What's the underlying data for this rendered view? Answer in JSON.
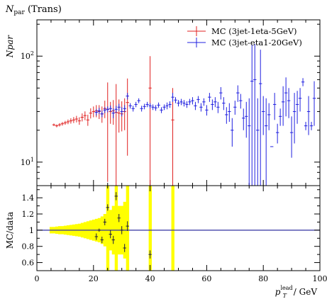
{
  "header": {
    "title_main": "N",
    "title_sub": "par",
    "title_rest": " (Trans)"
  },
  "colors": {
    "mc1": "#e02020",
    "mc2": "#2020e0",
    "band": "#ffff00",
    "ref": "#3030a0"
  },
  "chart_data": [
    {
      "type": "line",
      "panel": "main",
      "title": "Npar (Trans)",
      "ylabel": "Npar",
      "xlim": [
        0,
        100
      ],
      "ylim": [
        6,
        220
      ],
      "yscale": "log",
      "yticks": [
        {
          "v": 10,
          "label": "10^1"
        },
        {
          "v": 100,
          "label": "10^2"
        }
      ],
      "legend_position": "top-right",
      "series": [
        {
          "name": "MC (3jet-1eta-5GeV)",
          "color": "#e02020",
          "points": [
            {
              "x": 6,
              "y": 22.5,
              "err": 0.6
            },
            {
              "x": 7,
              "y": 22.0,
              "err": 0.7
            },
            {
              "x": 8,
              "y": 22.5,
              "err": 0.8
            },
            {
              "x": 9,
              "y": 23.0,
              "err": 0.9
            },
            {
              "x": 10,
              "y": 23.5,
              "err": 1.0
            },
            {
              "x": 11,
              "y": 24.0,
              "err": 1.2
            },
            {
              "x": 12,
              "y": 24.5,
              "err": 1.4
            },
            {
              "x": 13,
              "y": 25.0,
              "err": 1.6
            },
            {
              "x": 14,
              "y": 25.5,
              "err": 1.8
            },
            {
              "x": 15,
              "y": 24.5,
              "err": 2.0
            },
            {
              "x": 16,
              "y": 26.5,
              "err": 2.3
            },
            {
              "x": 17,
              "y": 27.5,
              "err": 2.6
            },
            {
              "x": 18,
              "y": 25.0,
              "err": 3.0
            },
            {
              "x": 19,
              "y": 29.0,
              "err": 3.2
            },
            {
              "x": 20,
              "y": 30.0,
              "err": 3.5
            },
            {
              "x": 21,
              "y": 30.5,
              "err": 4.0
            },
            {
              "x": 22,
              "y": 30.0,
              "err": 4.5
            },
            {
              "x": 23,
              "y": 28.5,
              "err": 5.0
            },
            {
              "x": 24,
              "y": 32.0,
              "err": 6.0
            },
            {
              "x": 25,
              "y": 31.5,
              "err": 25.0
            },
            {
              "x": 26,
              "y": 30.0,
              "err": 7.0
            },
            {
              "x": 27,
              "y": 30.5,
              "err": 8.0
            },
            {
              "x": 28,
              "y": 29.5,
              "err": 25.0
            },
            {
              "x": 29,
              "y": 29.0,
              "err": 10.0
            },
            {
              "x": 30,
              "y": 28.5,
              "err": 9.0
            },
            {
              "x": 31,
              "y": 30.0,
              "err": 10.0
            },
            {
              "x": 32,
              "y": 36.5,
              "err": 25.0
            },
            {
              "x": 40,
              "y": 50.0,
              "err": 50.0
            },
            {
              "x": 48,
              "y": 25.0,
              "err": 25.0
            }
          ]
        },
        {
          "name": "MC (3jet-eta1-20GeV)",
          "color": "#2020e0",
          "points": [
            {
              "x": 21,
              "y": 29.5,
              "err": 2.0
            },
            {
              "x": 22,
              "y": 30.5,
              "err": 2.0
            },
            {
              "x": 23,
              "y": 28.5,
              "err": 2.0
            },
            {
              "x": 24,
              "y": 31.0,
              "err": 2.0
            },
            {
              "x": 25,
              "y": 31.5,
              "err": 2.0
            },
            {
              "x": 26,
              "y": 32.0,
              "err": 2.2
            },
            {
              "x": 27,
              "y": 29.0,
              "err": 3.0
            },
            {
              "x": 28,
              "y": 31.5,
              "err": 2.5
            },
            {
              "x": 29,
              "y": 33.0,
              "err": 2.5
            },
            {
              "x": 30,
              "y": 30.0,
              "err": 3.0
            },
            {
              "x": 31,
              "y": 32.0,
              "err": 2.5
            },
            {
              "x": 32,
              "y": 42.0,
              "err": 3.0
            },
            {
              "x": 33,
              "y": 34.0,
              "err": 2.0
            },
            {
              "x": 34,
              "y": 32.0,
              "err": 2.0
            },
            {
              "x": 35,
              "y": 35.0,
              "err": 2.0
            },
            {
              "x": 36,
              "y": 38.0,
              "err": 2.0
            },
            {
              "x": 37,
              "y": 32.0,
              "err": 2.0
            },
            {
              "x": 38,
              "y": 33.5,
              "err": 2.0
            },
            {
              "x": 39,
              "y": 35.0,
              "err": 2.0
            },
            {
              "x": 40,
              "y": 34.0,
              "err": 2.0
            },
            {
              "x": 41,
              "y": 33.0,
              "err": 2.0
            },
            {
              "x": 42,
              "y": 32.5,
              "err": 2.0
            },
            {
              "x": 43,
              "y": 34.5,
              "err": 2.0
            },
            {
              "x": 44,
              "y": 31.0,
              "err": 2.0
            },
            {
              "x": 45,
              "y": 33.0,
              "err": 2.0
            },
            {
              "x": 46,
              "y": 34.0,
              "err": 2.5
            },
            {
              "x": 47,
              "y": 35.0,
              "err": 2.5
            },
            {
              "x": 48,
              "y": 41.0,
              "err": 4.0
            },
            {
              "x": 49,
              "y": 38.5,
              "err": 2.5
            },
            {
              "x": 50,
              "y": 36.0,
              "err": 2.5
            },
            {
              "x": 51,
              "y": 37.0,
              "err": 2.5
            },
            {
              "x": 52,
              "y": 36.0,
              "err": 2.5
            },
            {
              "x": 53,
              "y": 35.0,
              "err": 2.5
            },
            {
              "x": 54,
              "y": 37.0,
              "err": 2.5
            },
            {
              "x": 55,
              "y": 38.0,
              "err": 3.0
            },
            {
              "x": 56,
              "y": 34.0,
              "err": 3.0
            },
            {
              "x": 57,
              "y": 39.0,
              "err": 3.0
            },
            {
              "x": 58,
              "y": 33.0,
              "err": 3.0
            },
            {
              "x": 59,
              "y": 37.0,
              "err": 3.0
            },
            {
              "x": 60,
              "y": 31.0,
              "err": 3.5
            },
            {
              "x": 61,
              "y": 41.0,
              "err": 4.0
            },
            {
              "x": 62,
              "y": 35.0,
              "err": 4.0
            },
            {
              "x": 63,
              "y": 37.0,
              "err": 4.0
            },
            {
              "x": 64,
              "y": 33.0,
              "err": 4.0
            },
            {
              "x": 65,
              "y": 45.0,
              "err": 6.0
            },
            {
              "x": 66,
              "y": 36.0,
              "err": 5.0
            },
            {
              "x": 67,
              "y": 28.0,
              "err": 5.0
            },
            {
              "x": 68,
              "y": 30.0,
              "err": 6.0
            },
            {
              "x": 69,
              "y": 20.0,
              "err": 6.0
            },
            {
              "x": 70,
              "y": 33.0,
              "err": 5.0
            },
            {
              "x": 71,
              "y": 45.0,
              "err": 8.0
            },
            {
              "x": 72,
              "y": 38.0,
              "err": 6.0
            },
            {
              "x": 73,
              "y": 26.0,
              "err": 6.0
            },
            {
              "x": 74,
              "y": 27.0,
              "err": 10.0
            },
            {
              "x": 75,
              "y": 22.0,
              "err": 18.0
            },
            {
              "x": 76,
              "y": 58.0,
              "err": 70.0
            },
            {
              "x": 77,
              "y": 60.0,
              "err": 70.0
            },
            {
              "x": 78,
              "y": 20.0,
              "err": 20.0
            },
            {
              "x": 79,
              "y": 55.0,
              "err": 60.0
            },
            {
              "x": 80,
              "y": 30.0,
              "err": 12.0
            },
            {
              "x": 81,
              "y": 22.0,
              "err": 18.0
            },
            {
              "x": 82,
              "y": 28.0,
              "err": 8.0
            },
            {
              "x": 83,
              "y": 14.0,
              "err": 0.0
            },
            {
              "x": 84,
              "y": 35.0,
              "err": 10.0
            },
            {
              "x": 85,
              "y": 19.0,
              "err": 4.0
            },
            {
              "x": 86,
              "y": 27.0,
              "err": 5.0
            },
            {
              "x": 87,
              "y": 37.0,
              "err": 15.0
            },
            {
              "x": 88,
              "y": 45.0,
              "err": 18.0
            },
            {
              "x": 89,
              "y": 38.0,
              "err": 12.0
            },
            {
              "x": 90,
              "y": 19.0,
              "err": 8.0
            },
            {
              "x": 91,
              "y": 30.0,
              "err": 15.0
            },
            {
              "x": 92,
              "y": 35.0,
              "err": 12.0
            },
            {
              "x": 93,
              "y": 40.0,
              "err": 10.0
            },
            {
              "x": 94,
              "y": 57.0,
              "err": 5.0
            },
            {
              "x": 95,
              "y": 22.0,
              "err": 2.0
            },
            {
              "x": 96,
              "y": 30.0,
              "err": 12.0
            },
            {
              "x": 97,
              "y": 22.0,
              "err": 2.0
            },
            {
              "x": 98,
              "y": 40.0,
              "err": 18.0
            }
          ]
        }
      ]
    },
    {
      "type": "line",
      "panel": "ratio",
      "ylabel": "MC/data",
      "xlabel_main": "p",
      "xlabel_sub": "T",
      "xlabel_sup": "lead",
      "xlabel_unit": " / GeV",
      "xlim": [
        0,
        100
      ],
      "ylim": [
        0.5,
        1.55
      ],
      "xticks": [
        0,
        20,
        40,
        60,
        80,
        100
      ],
      "yticks": [
        0.6,
        0.8,
        1,
        1.2,
        1.4
      ],
      "reference": 1,
      "band": [
        {
          "x": 5,
          "half": 0.04
        },
        {
          "x": 6,
          "half": 0.04
        },
        {
          "x": 7,
          "half": 0.045
        },
        {
          "x": 8,
          "half": 0.05
        },
        {
          "x": 9,
          "half": 0.05
        },
        {
          "x": 10,
          "half": 0.055
        },
        {
          "x": 11,
          "half": 0.06
        },
        {
          "x": 12,
          "half": 0.065
        },
        {
          "x": 13,
          "half": 0.07
        },
        {
          "x": 14,
          "half": 0.075
        },
        {
          "x": 15,
          "half": 0.08
        },
        {
          "x": 16,
          "half": 0.09
        },
        {
          "x": 17,
          "half": 0.1
        },
        {
          "x": 18,
          "half": 0.11
        },
        {
          "x": 19,
          "half": 0.12
        },
        {
          "x": 20,
          "half": 0.13
        },
        {
          "x": 21,
          "half": 0.14
        },
        {
          "x": 22,
          "half": 0.15
        },
        {
          "x": 23,
          "half": 0.17
        },
        {
          "x": 24,
          "half": 0.2
        },
        {
          "x": 25,
          "half": 0.6
        },
        {
          "x": 26,
          "half": 0.25
        },
        {
          "x": 27,
          "half": 0.3
        },
        {
          "x": 28,
          "half": 0.6
        },
        {
          "x": 29,
          "half": 0.3
        },
        {
          "x": 30,
          "half": 0.3
        },
        {
          "x": 31,
          "half": 0.35
        },
        {
          "x": 32,
          "half": 0.6
        },
        {
          "x": 40,
          "half": 0.6
        },
        {
          "x": 48,
          "half": 0.6
        }
      ],
      "series": [
        {
          "name": "MC (3jet-eta1-20GeV)",
          "color": "#2020e0",
          "points": [
            {
              "x": 21,
              "y": 0.92,
              "err": 0.04
            },
            {
              "x": 22,
              "y": 1.0,
              "err": 0.02
            },
            {
              "x": 23,
              "y": 0.88,
              "err": 0.04
            },
            {
              "x": 24,
              "y": 1.1,
              "err": 0.04
            },
            {
              "x": 25,
              "y": 1.28,
              "err": 0.04
            },
            {
              "x": 26,
              "y": 0.95,
              "err": 0.05
            },
            {
              "x": 27,
              "y": 0.88,
              "err": 0.05
            },
            {
              "x": 28,
              "y": 1.42,
              "err": 0.05
            },
            {
              "x": 29,
              "y": 1.15,
              "err": 0.05
            },
            {
              "x": 30,
              "y": 1.0,
              "err": 0.05
            },
            {
              "x": 31,
              "y": 0.78,
              "err": 0.05
            },
            {
              "x": 32,
              "y": 1.05,
              "err": 0.06
            },
            {
              "x": 40,
              "y": 0.7,
              "err": 0.05
            }
          ]
        }
      ]
    }
  ]
}
